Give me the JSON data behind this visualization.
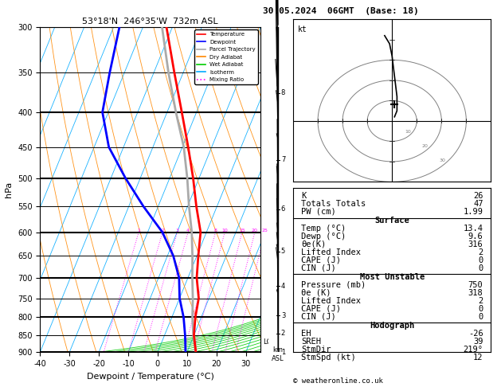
{
  "title_left": "53°18'N  246°35'W  732m ASL",
  "title_right": "30.05.2024  06GMT  (Base: 18)",
  "xlabel": "Dewpoint / Temperature (°C)",
  "ylabel_left": "hPa",
  "temp_min": -40,
  "temp_max": 35,
  "temp_ticks": [
    -40,
    -30,
    -20,
    -10,
    0,
    10,
    20,
    30
  ],
  "bg_color": "#ffffff",
  "colors": {
    "temperature": "#ff0000",
    "dewpoint": "#0000ff",
    "parcel": "#aaaaaa",
    "dry_adiabat": "#ff8800",
    "wet_adiabat": "#00cc00",
    "isotherm": "#00aaff",
    "mixing_ratio": "#ff00ff",
    "black": "#000000"
  },
  "legend_labels": [
    "Temperature",
    "Dewpoint",
    "Parcel Trajectory",
    "Dry Adiabat",
    "Wet Adiabat",
    "Isotherm",
    "Mixing Ratio"
  ],
  "legend_colors": [
    "#ff0000",
    "#0000ff",
    "#aaaaaa",
    "#ff8800",
    "#00cc00",
    "#00aaff",
    "#ff00ff"
  ],
  "legend_styles": [
    "solid",
    "solid",
    "solid",
    "solid",
    "solid",
    "solid",
    "dotted"
  ],
  "stats": {
    "K": 26,
    "Totals_Totals": 47,
    "PW_cm": 1.99,
    "Surface_Temp": 13.4,
    "Surface_Dewp": 9.6,
    "Surface_theta_e": 316,
    "Surface_LI": 2,
    "Surface_CAPE": 0,
    "Surface_CIN": 0,
    "MU_Pressure": 750,
    "MU_theta_e": 318,
    "MU_LI": 2,
    "MU_CAPE": 0,
    "MU_CIN": 0,
    "EH": -26,
    "SREH": 39,
    "StmDir": 219,
    "StmSpd": 12
  },
  "mixing_ratio_values": [
    1,
    2,
    3,
    4,
    8,
    10,
    15,
    20,
    25
  ],
  "lcl_pressure": 870,
  "sounding_p": [
    900,
    850,
    800,
    750,
    700,
    650,
    600,
    550,
    500,
    450,
    400,
    350,
    300
  ],
  "sounding_T": [
    13.0,
    10.0,
    8.0,
    6.5,
    3.0,
    0.5,
    -2.0,
    -7.0,
    -12.0,
    -18.0,
    -25.0,
    -33.0,
    -42.0
  ],
  "sounding_Td": [
    9.5,
    7.0,
    4.0,
    0.0,
    -3.0,
    -8.0,
    -15.0,
    -25.0,
    -35.0,
    -45.0,
    -52.0,
    -55.0,
    -58.0
  ],
  "parcel_T": [
    13.0,
    9.8,
    7.0,
    4.5,
    1.5,
    -1.5,
    -5.0,
    -9.5,
    -14.0,
    -19.5,
    -27.0,
    -35.0,
    -43.5
  ]
}
